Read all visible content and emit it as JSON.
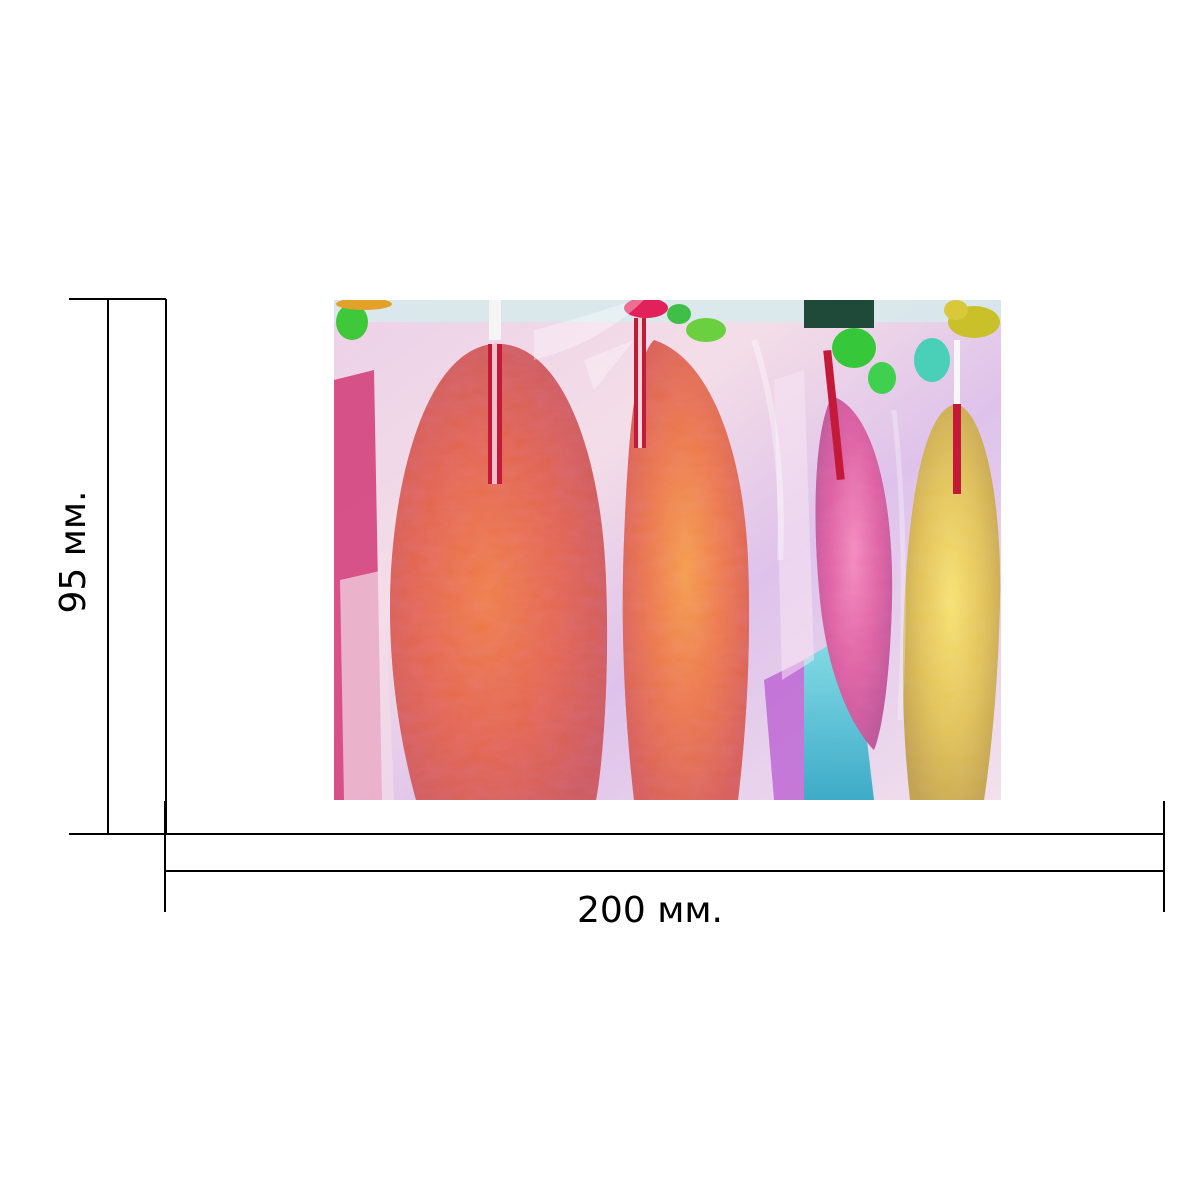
{
  "dimensions": {
    "width_label": "200 мм.",
    "height_label": "95 мм."
  },
  "photo": {
    "subject-icon": "hanging-foil-wrapped-feather-shapes",
    "palette": [
      "#c8203a",
      "#e0342c",
      "#c02a86",
      "#c9a21e",
      "#2bb3c0",
      "#3cc83c"
    ]
  }
}
